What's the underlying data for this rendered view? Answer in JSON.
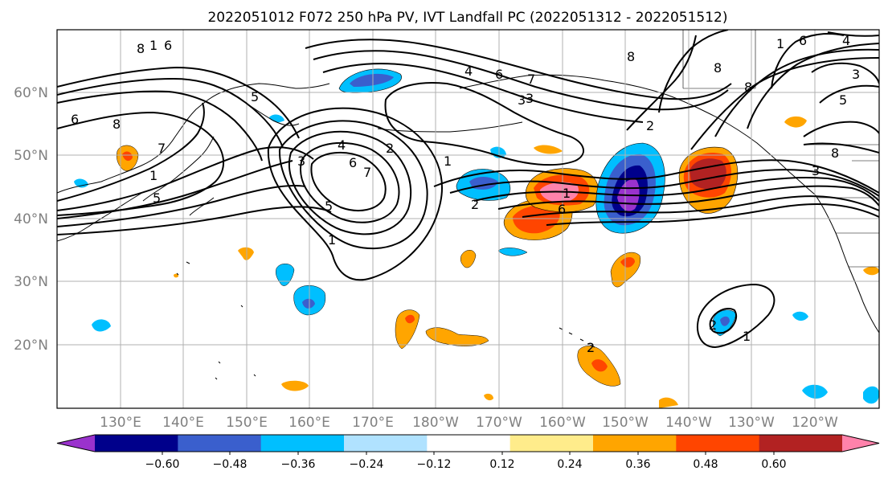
{
  "title": "2022051012 F072 250 hPa PV, IVT Landfall PC (2022051312 - 2022051512)",
  "map": {
    "lon_ticks": [
      "130°E",
      "140°E",
      "150°E",
      "160°E",
      "170°E",
      "180°W",
      "170°W",
      "160°W",
      "150°W",
      "140°W",
      "130°W",
      "120°W"
    ],
    "lat_ticks": [
      "60°N",
      "50°N",
      "40°N",
      "30°N",
      "20°N"
    ],
    "grid": true,
    "contour_labels": [
      "8",
      "1",
      "6",
      "8",
      "7",
      "6",
      "1",
      "3",
      "2",
      "1",
      "4",
      "6",
      "7",
      "5",
      "5",
      "3",
      "1",
      "2",
      "1",
      "3",
      "4",
      "6",
      "8",
      "7",
      "8",
      "3",
      "1",
      "8",
      "6",
      "4",
      "3",
      "5",
      "6",
      "8",
      "5",
      "2",
      "1",
      "2",
      "2"
    ]
  },
  "colorbar": {
    "tick_labels": [
      "−0.60",
      "−0.48",
      "−0.36",
      "−0.24",
      "−0.12",
      "0.12",
      "0.24",
      "0.36",
      "0.48",
      "0.60"
    ],
    "colors": [
      "#9a32cd",
      "#00008b",
      "#3a5fcd",
      "#00bfff",
      "#b0e2ff",
      "#ffffff",
      "#ffec8b",
      "#ffa500",
      "#ff4500",
      "#b22222",
      "#ff82ab"
    ],
    "extend": "both"
  }
}
